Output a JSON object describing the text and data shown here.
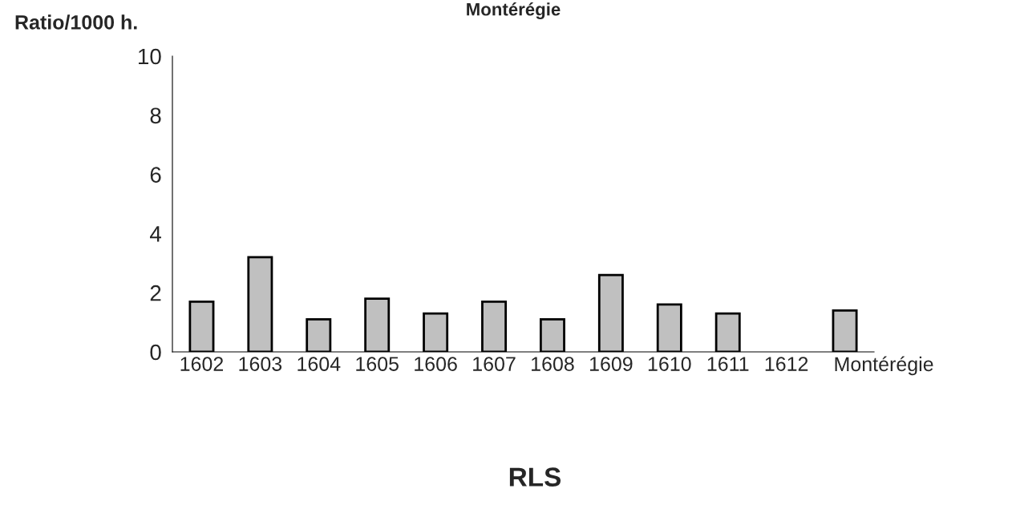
{
  "chart_data": {
    "type": "bar",
    "title": "Montérégie",
    "xlabel": "RLS",
    "ylabel": "Ratio/1000 h.",
    "categories": [
      "1602",
      "1603",
      "1604",
      "1605",
      "1606",
      "1607",
      "1608",
      "1609",
      "1610",
      "1611",
      "1612",
      "Montérégie"
    ],
    "values": [
      1.7,
      3.2,
      1.1,
      1.8,
      1.3,
      1.7,
      1.1,
      2.6,
      1.6,
      1.3,
      null,
      1.4
    ],
    "color": "#c0c0c0",
    "ylim": [
      0,
      10
    ],
    "yticks": [
      0,
      2,
      4,
      6,
      8,
      10
    ],
    "grid": false,
    "legend": false
  }
}
